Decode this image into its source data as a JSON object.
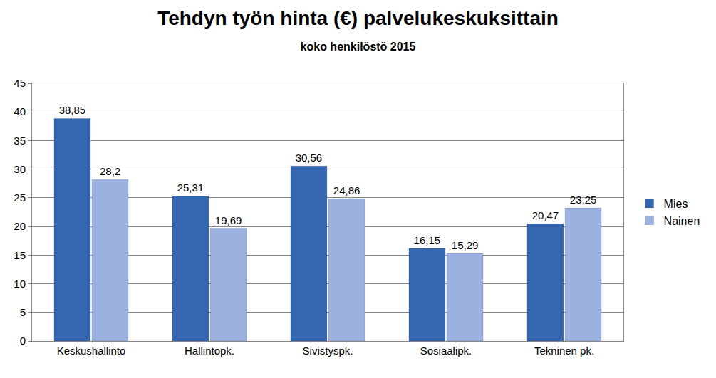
{
  "chart_data": {
    "type": "bar",
    "title": "Tehdyn työn hinta (€) palvelukeskuksittain",
    "subtitle": "koko henkilöstö 2015",
    "categories": [
      "Keskushallinto",
      "Hallintopk.",
      "Sivistyspk.",
      "Sosiaalipk.",
      "Tekninen pk."
    ],
    "series": [
      {
        "name": "Mies",
        "color": "#3566b0",
        "values": [
          38.85,
          25.31,
          30.56,
          16.15,
          20.47
        ],
        "value_labels": [
          "38,85",
          "25,31",
          "30,56",
          "16,15",
          "20,47"
        ]
      },
      {
        "name": "Nainen",
        "color": "#9bb2e0",
        "values": [
          28.2,
          19.69,
          24.86,
          15.29,
          23.25
        ],
        "value_labels": [
          "28,2",
          "19,69",
          "24,86",
          "15,29",
          "23,25"
        ]
      }
    ],
    "ylim": [
      0,
      45
    ],
    "yticks": [
      0,
      5,
      10,
      15,
      20,
      25,
      30,
      35,
      40,
      45
    ],
    "grid": true,
    "legend": "right",
    "data_labels": true
  }
}
